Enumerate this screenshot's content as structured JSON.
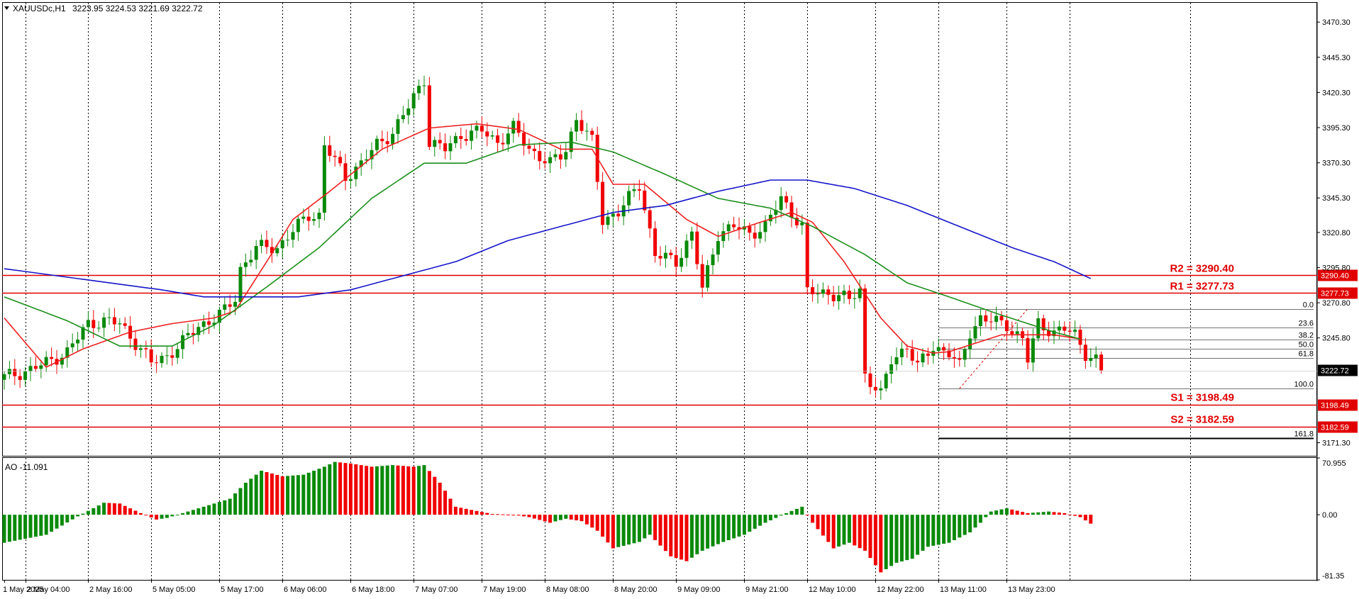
{
  "header": {
    "symbol": "XAUUSDc,H1",
    "ohlc": "3223.95 3224.53 3221.69 3222.72",
    "ao_label": "AO -11.091"
  },
  "colors": {
    "bull": "#0a8a0a",
    "bear": "#f00000",
    "ema_red": "#ee2020",
    "ema_green": "#1c8f1c",
    "ema_blue": "#1515c8",
    "level": "#e00000",
    "grid": "#000000",
    "fib": "#000000"
  },
  "chart_data": [
    {
      "type": "candlestick",
      "title": "XAUUSDc,H1",
      "ylim": [
        3162,
        3484
      ],
      "price_axis_ticks": [
        "3470.30",
        "3445.30",
        "3420.30",
        "3395.30",
        "3370.30",
        "3345.30",
        "3320.80",
        "3295.80",
        "3270.80",
        "3245.80",
        "3222.72",
        "3171.30"
      ],
      "time_labels": [
        "1 May 2025",
        "2 May 04:00",
        "2 May 16:00",
        "5 May 05:00",
        "5 May 17:00",
        "6 May 06:00",
        "6 May 18:00",
        "7 May 07:00",
        "7 May 19:00",
        "8 May 08:00",
        "8 May 20:00",
        "9 May 09:00",
        "9 May 21:00",
        "12 May 10:00",
        "12 May 22:00",
        "13 May 11:00",
        "13 May 23:00"
      ],
      "vertical_grid_index": [
        4,
        16,
        28,
        41,
        53,
        66,
        78,
        91,
        103,
        116,
        128,
        141,
        153,
        166,
        178,
        191,
        203,
        226
      ],
      "last_price": "3222.72",
      "levels": [
        {
          "name": "R2",
          "label": "R2 = 3290.40",
          "value": 3290.4,
          "axis_label": "3290.40"
        },
        {
          "name": "R1",
          "label": "R1 = 3277.73",
          "value": 3277.73,
          "axis_label": "3277.73"
        },
        {
          "name": "S1",
          "label": "S1 = 3198.49",
          "value": 3198.49,
          "axis_label": "3198.49"
        },
        {
          "name": "S2",
          "label": "S2 = 3182.59",
          "value": 3182.59,
          "axis_label": "3182.59"
        }
      ],
      "fibonacci": {
        "high": 3266.5,
        "low": 3209.8,
        "start_index": 178,
        "levels": [
          {
            "label": "0.0",
            "ratio": 0
          },
          {
            "label": "23.6",
            "ratio": 0.236
          },
          {
            "label": "38.2",
            "ratio": 0.382
          },
          {
            "label": "50.0",
            "ratio": 0.5
          },
          {
            "label": "61.8",
            "ratio": 0.618
          },
          {
            "label": "100.0",
            "ratio": 1.0
          },
          {
            "label": "161.8",
            "ratio": 1.618
          }
        ]
      },
      "close_anchors": [
        [
          0,
          3218
        ],
        [
          4,
          3222
        ],
        [
          8,
          3228
        ],
        [
          12,
          3236
        ],
        [
          16,
          3256
        ],
        [
          19,
          3258
        ],
        [
          22,
          3256
        ],
        [
          26,
          3238
        ],
        [
          28,
          3228
        ],
        [
          31,
          3233
        ],
        [
          34,
          3243
        ],
        [
          37,
          3254
        ],
        [
          40,
          3260
        ],
        [
          42,
          3265
        ],
        [
          44,
          3274
        ],
        [
          45,
          3295
        ],
        [
          48,
          3310
        ],
        [
          52,
          3310
        ],
        [
          55,
          3322
        ],
        [
          58,
          3333
        ],
        [
          60,
          3333
        ],
        [
          61,
          3383
        ],
        [
          65,
          3360
        ],
        [
          68,
          3370
        ],
        [
          71,
          3383
        ],
        [
          74,
          3392
        ],
        [
          77,
          3410
        ],
        [
          80,
          3430
        ],
        [
          81,
          3385
        ],
        [
          84,
          3380
        ],
        [
          87,
          3390
        ],
        [
          91,
          3393
        ],
        [
          94,
          3385
        ],
        [
          97,
          3395
        ],
        [
          100,
          3380
        ],
        [
          104,
          3370
        ],
        [
          106,
          3375
        ],
        [
          107,
          3380
        ],
        [
          109,
          3402
        ],
        [
          112,
          3385
        ],
        [
          114,
          3330
        ],
        [
          117,
          3335
        ],
        [
          121,
          3355
        ],
        [
          124,
          3305
        ],
        [
          128,
          3300
        ],
        [
          131,
          3320
        ],
        [
          133,
          3280
        ],
        [
          136,
          3320
        ],
        [
          139,
          3325
        ],
        [
          142,
          3320
        ],
        [
          145,
          3325
        ],
        [
          148,
          3345
        ],
        [
          151,
          3330
        ],
        [
          152,
          3325
        ],
        [
          153,
          3278
        ],
        [
          157,
          3278
        ],
        [
          161,
          3273
        ],
        [
          163,
          3280
        ],
        [
          164,
          3220
        ],
        [
          167,
          3205
        ],
        [
          169,
          3230
        ],
        [
          172,
          3240
        ],
        [
          174,
          3225
        ],
        [
          177,
          3240
        ],
        [
          180,
          3235
        ],
        [
          182,
          3225
        ],
        [
          184,
          3250
        ],
        [
          186,
          3260
        ],
        [
          188,
          3258
        ],
        [
          191,
          3255
        ],
        [
          194,
          3245
        ],
        [
          195,
          3230
        ],
        [
          197,
          3256
        ],
        [
          200,
          3250
        ],
        [
          202,
          3252
        ],
        [
          204,
          3248
        ],
        [
          206,
          3235
        ],
        [
          208,
          3230
        ],
        [
          209,
          3222.72
        ]
      ],
      "ema_red": [
        [
          0,
          3260
        ],
        [
          8,
          3225
        ],
        [
          15,
          3238
        ],
        [
          24,
          3250
        ],
        [
          32,
          3256
        ],
        [
          40,
          3260
        ],
        [
          44,
          3265
        ],
        [
          50,
          3300
        ],
        [
          55,
          3330
        ],
        [
          62,
          3350
        ],
        [
          72,
          3380
        ],
        [
          81,
          3395
        ],
        [
          90,
          3398
        ],
        [
          98,
          3394
        ],
        [
          106,
          3380
        ],
        [
          112,
          3380
        ],
        [
          116,
          3355
        ],
        [
          122,
          3355
        ],
        [
          130,
          3330
        ],
        [
          136,
          3318
        ],
        [
          144,
          3328
        ],
        [
          150,
          3335
        ],
        [
          154,
          3328
        ],
        [
          160,
          3300
        ],
        [
          167,
          3260
        ],
        [
          172,
          3240
        ],
        [
          177,
          3235
        ],
        [
          180,
          3236
        ],
        [
          190,
          3248
        ],
        [
          200,
          3248
        ],
        [
          205,
          3245
        ]
      ],
      "ema_green": [
        [
          0,
          3275
        ],
        [
          12,
          3258
        ],
        [
          22,
          3240
        ],
        [
          32,
          3240
        ],
        [
          40,
          3255
        ],
        [
          50,
          3282
        ],
        [
          60,
          3310
        ],
        [
          70,
          3345
        ],
        [
          80,
          3370
        ],
        [
          88,
          3370
        ],
        [
          98,
          3383
        ],
        [
          108,
          3385
        ],
        [
          116,
          3378
        ],
        [
          126,
          3362
        ],
        [
          136,
          3345
        ],
        [
          146,
          3338
        ],
        [
          154,
          3325
        ],
        [
          164,
          3305
        ],
        [
          172,
          3285
        ],
        [
          180,
          3275
        ],
        [
          190,
          3262
        ],
        [
          200,
          3250
        ],
        [
          205,
          3245
        ]
      ],
      "ema_blue": [
        [
          0,
          3295
        ],
        [
          10,
          3290
        ],
        [
          20,
          3285
        ],
        [
          30,
          3280
        ],
        [
          38,
          3275
        ],
        [
          46,
          3275
        ],
        [
          56,
          3275
        ],
        [
          66,
          3280
        ],
        [
          76,
          3290
        ],
        [
          86,
          3300
        ],
        [
          96,
          3315
        ],
        [
          106,
          3325
        ],
        [
          116,
          3335
        ],
        [
          126,
          3340
        ],
        [
          136,
          3350
        ],
        [
          146,
          3358
        ],
        [
          153,
          3358
        ],
        [
          162,
          3352
        ],
        [
          172,
          3340
        ],
        [
          182,
          3325
        ],
        [
          192,
          3310
        ],
        [
          200,
          3300
        ],
        [
          207,
          3288
        ]
      ]
    },
    {
      "type": "bar",
      "title": "AO -11.091",
      "ylim": [
        -81.35,
        70.955
      ],
      "ticks": [
        "70.955",
        "0.00",
        "-81.35"
      ],
      "ao_anchors": [
        [
          0,
          -35
        ],
        [
          8,
          -25
        ],
        [
          14,
          -2
        ],
        [
          19,
          15
        ],
        [
          22,
          14
        ],
        [
          26,
          2
        ],
        [
          29,
          -6
        ],
        [
          31,
          -4
        ],
        [
          35,
          4
        ],
        [
          39,
          12
        ],
        [
          43,
          20
        ],
        [
          46,
          40
        ],
        [
          49,
          55
        ],
        [
          53,
          48
        ],
        [
          57,
          50
        ],
        [
          61,
          60
        ],
        [
          63,
          66
        ],
        [
          66,
          64
        ],
        [
          70,
          60
        ],
        [
          74,
          62
        ],
        [
          78,
          60
        ],
        [
          80,
          62
        ],
        [
          83,
          40
        ],
        [
          86,
          10
        ],
        [
          89,
          6
        ],
        [
          93,
          1
        ],
        [
          97,
          0
        ],
        [
          100,
          -3
        ],
        [
          104,
          -10
        ],
        [
          107,
          -5
        ],
        [
          110,
          -8
        ],
        [
          113,
          -20
        ],
        [
          116,
          -42
        ],
        [
          121,
          -34
        ],
        [
          123,
          -25
        ],
        [
          127,
          -52
        ],
        [
          130,
          -58
        ],
        [
          133,
          -45
        ],
        [
          137,
          -34
        ],
        [
          141,
          -25
        ],
        [
          145,
          -10
        ],
        [
          149,
          2
        ],
        [
          152,
          10
        ],
        [
          153,
          0
        ],
        [
          154,
          -10
        ],
        [
          158,
          -42
        ],
        [
          161,
          -35
        ],
        [
          164,
          -45
        ],
        [
          167,
          -72
        ],
        [
          170,
          -60
        ],
        [
          173,
          -55
        ],
        [
          176,
          -40
        ],
        [
          180,
          -35
        ],
        [
          184,
          -22
        ],
        [
          186,
          -10
        ],
        [
          188,
          4
        ],
        [
          191,
          8
        ],
        [
          195,
          2
        ],
        [
          199,
          4
        ],
        [
          202,
          2
        ],
        [
          205,
          -3
        ],
        [
          207,
          -11.091
        ]
      ]
    }
  ]
}
